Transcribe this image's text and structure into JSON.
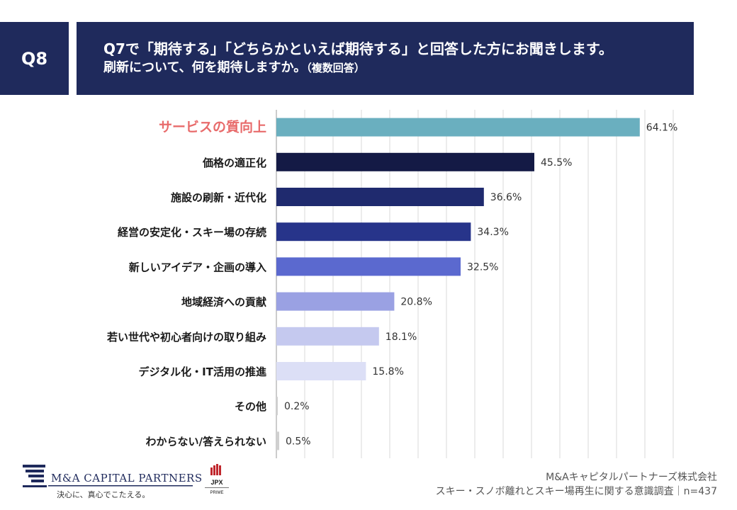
{
  "header": {
    "q_label": "Q8",
    "title_line1": "Q7で「期待する」「どちらかといえば期待する」と回答した方にお聞きします。",
    "title_line2": "刷新について、何を期待しますか。",
    "title_line2_note": "（複数回答）"
  },
  "chart_data": {
    "type": "bar",
    "orientation": "horizontal",
    "categories": [
      "サービスの質向上",
      "価格の適正化",
      "施設の刷新・近代化",
      "経営の安定化・スキー場の存続",
      "新しいアイデア・企画の導入",
      "地域経済への貢献",
      "若い世代や初心者向けの取り組み",
      "デジタル化・IT活用の推進",
      "その他",
      "わからない/答えられない"
    ],
    "values": [
      64.1,
      45.5,
      36.6,
      34.3,
      32.5,
      20.8,
      18.1,
      15.8,
      0.2,
      0.5
    ],
    "value_labels": [
      "64.1%",
      "45.5%",
      "36.6%",
      "34.3%",
      "32.5%",
      "20.8%",
      "18.1%",
      "15.8%",
      "0.2%",
      "0.5%"
    ],
    "bar_colors": [
      "#6aafbf",
      "#141a45",
      "#1f2a6e",
      "#27348a",
      "#5b69cf",
      "#9aa1e3",
      "#c5c9ef",
      "#dcdff6",
      "#d0d0d0",
      "#d0d0d0"
    ],
    "highlight_label_color": "#e86b6b",
    "xlim": [
      0,
      70
    ],
    "grid": true,
    "title": "",
    "xlabel": "",
    "ylabel": ""
  },
  "footer": {
    "logo_text": "M&A CAPITAL PARTNERS",
    "logo_tagline": "決心に、真心でこたえる。",
    "jpx_text": "JPX",
    "jpx_sub": "PRIME",
    "company": "M&Aキャピタルパートナーズ株式会社",
    "survey": "スキー・スノボ離れとスキー場再生に関する意識調査｜n=437"
  }
}
